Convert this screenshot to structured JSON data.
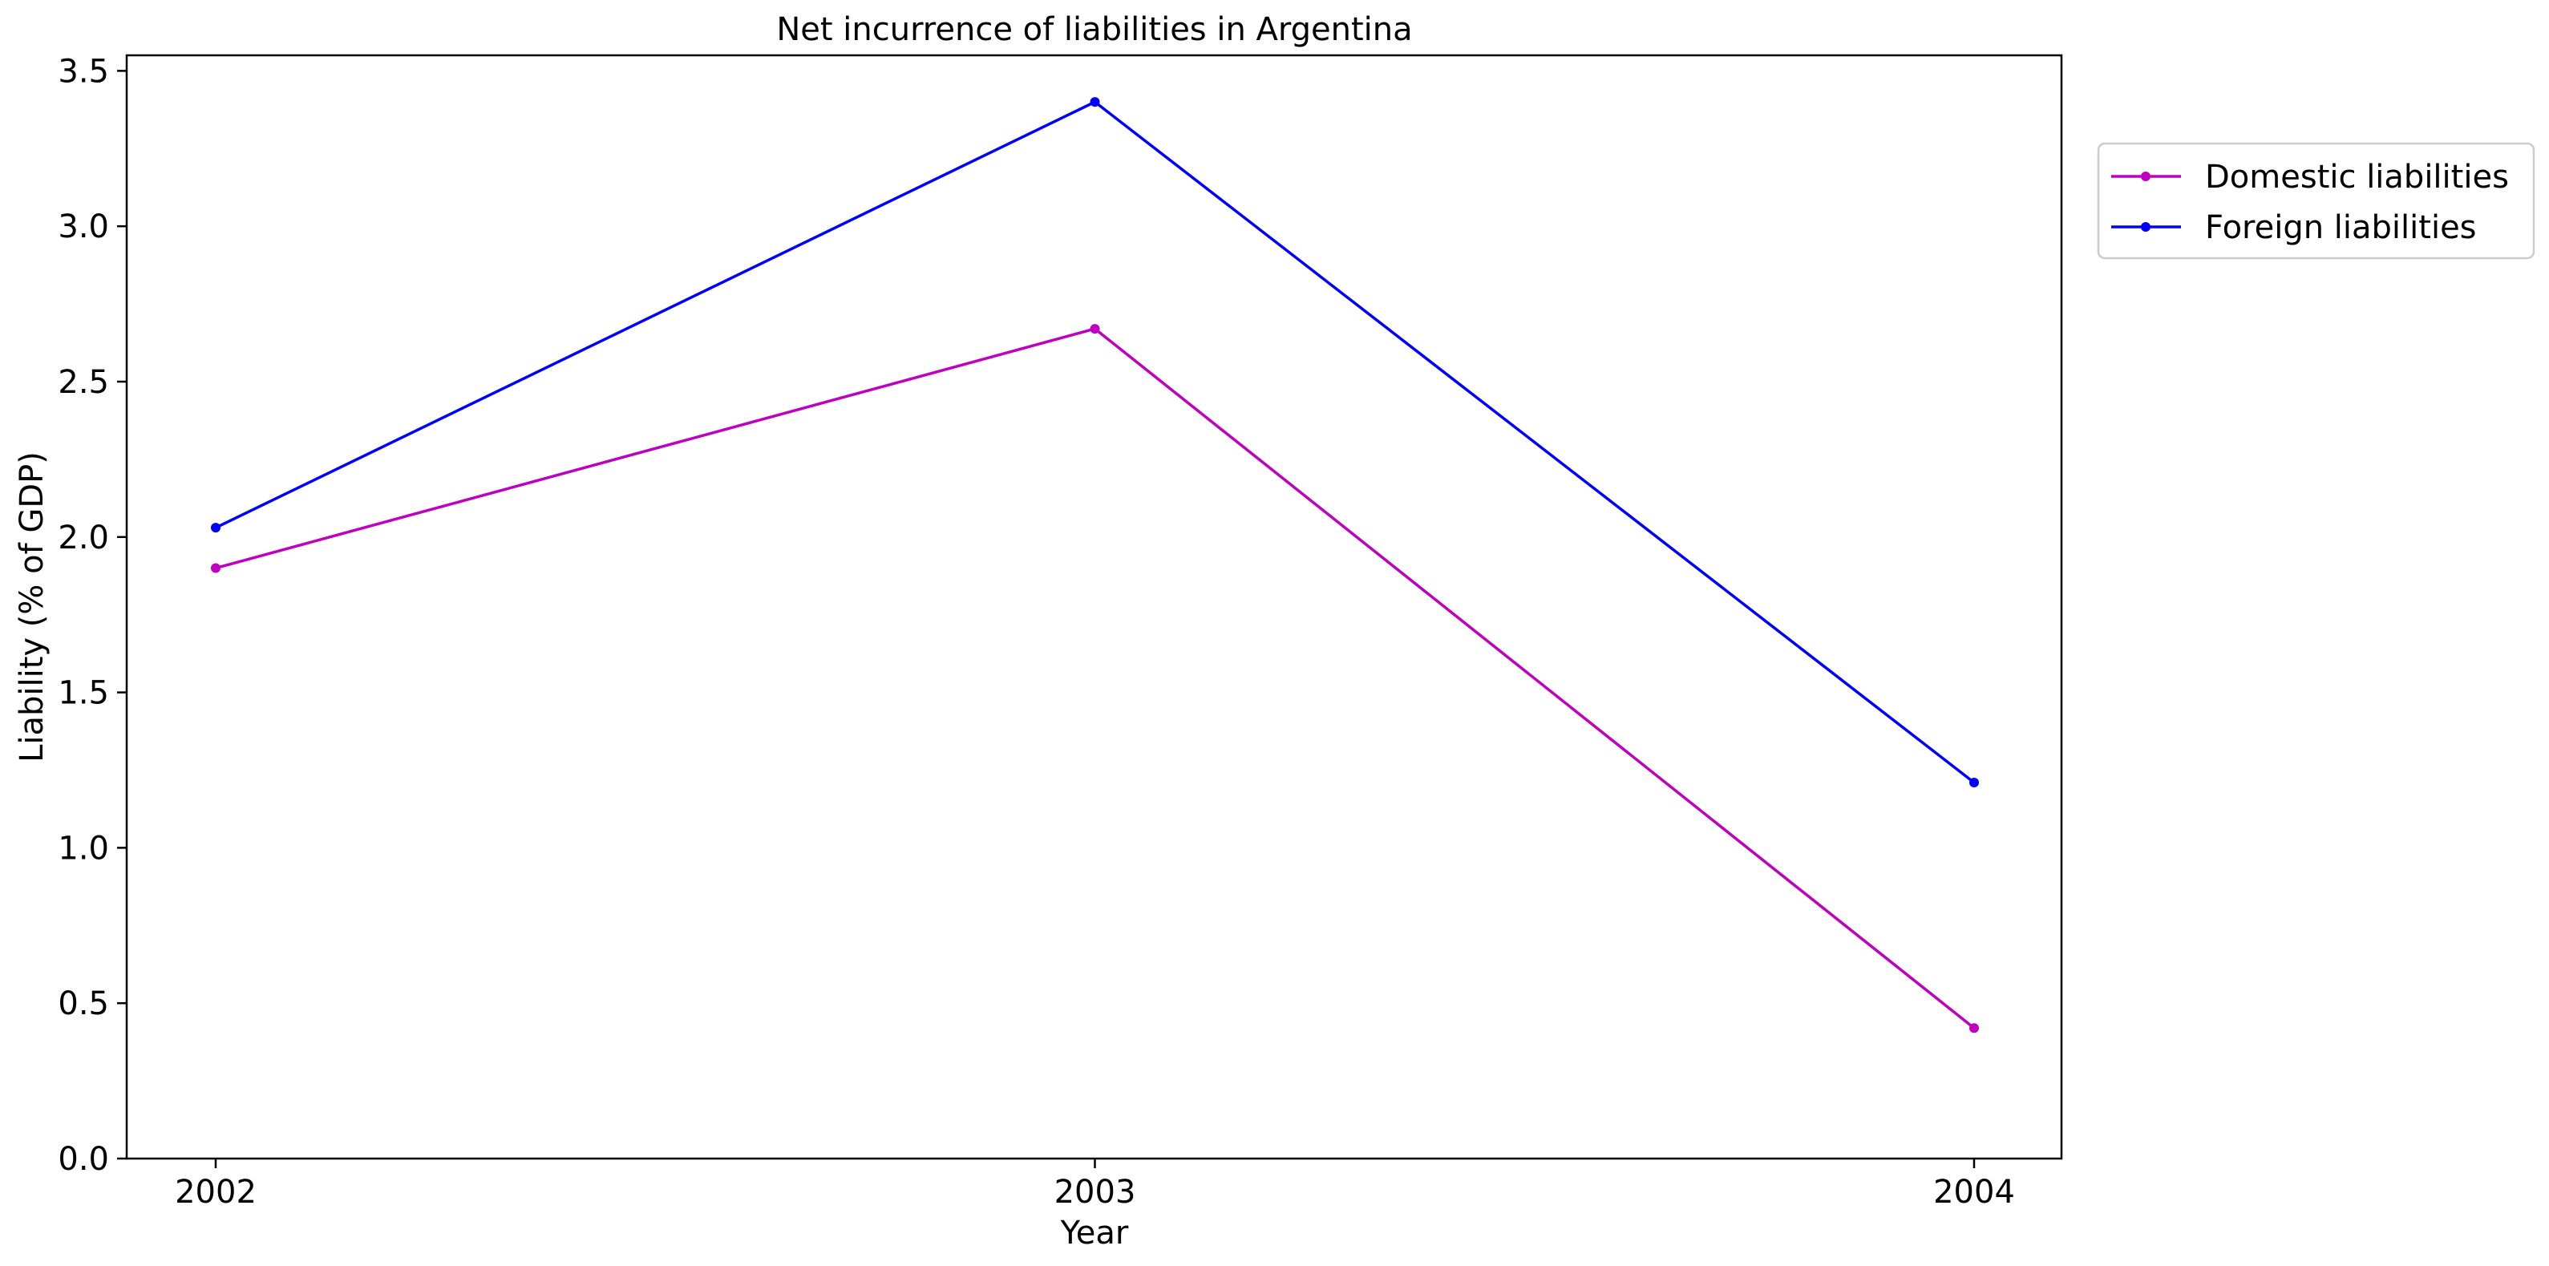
{
  "chart_data": {
    "type": "line",
    "title": "Net incurrence of liabilities in Argentina",
    "xlabel": "Year",
    "ylabel": "Liability (% of GDP)",
    "x": [
      "2002",
      "2003",
      "2004"
    ],
    "ylim": [
      0,
      3.55
    ],
    "yticks": [
      "0.0",
      "0.5",
      "1.0",
      "1.5",
      "2.0",
      "2.5",
      "3.0",
      "3.5"
    ],
    "grid": false,
    "legend_position": "outside top-right",
    "series": [
      {
        "name": "Domestic liabilities",
        "color": "#bf00bf",
        "values": [
          1.9,
          2.67,
          0.42
        ]
      },
      {
        "name": "Foreign liabilities",
        "color": "#0000ff",
        "values": [
          2.03,
          3.4,
          1.21
        ]
      }
    ]
  }
}
